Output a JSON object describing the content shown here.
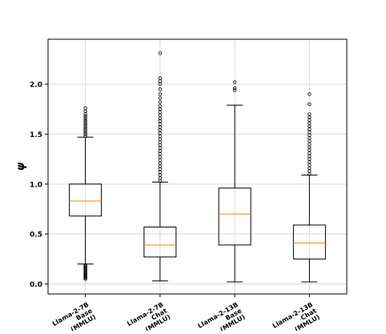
{
  "chart_data": {
    "type": "box",
    "title": "",
    "xlabel": "",
    "ylabel": "ψ",
    "ylim": [
      -0.1,
      2.45
    ],
    "yticks": [
      0.0,
      0.5,
      1.0,
      1.5,
      2.0
    ],
    "ytick_labels": [
      "0.0",
      "0.5",
      "1.0",
      "1.5",
      "2.0"
    ],
    "grid": true,
    "categories": [
      [
        "Llama-2-7B",
        "Base",
        "(MMLU)"
      ],
      [
        "Llama-2-7B",
        "Chat",
        "(MMLU)"
      ],
      [
        "Llama-2-13B",
        "Base",
        "(MMLU)"
      ],
      [
        "Llama-2-13B",
        "Chat",
        "(MMLU)"
      ]
    ],
    "boxes": [
      {
        "whisker_low": 0.2,
        "q1": 0.68,
        "median": 0.83,
        "q3": 1.0,
        "whisker_high": 1.47,
        "outliers": [
          0.05,
          0.06,
          0.07,
          0.08,
          0.09,
          0.1,
          0.11,
          0.12,
          0.13,
          0.14,
          0.15,
          0.16,
          0.17,
          0.18,
          0.19,
          1.48,
          1.5,
          1.52,
          1.54,
          1.56,
          1.58,
          1.6,
          1.62,
          1.64,
          1.66,
          1.68,
          1.7,
          1.73,
          1.76
        ]
      },
      {
        "whisker_low": 0.03,
        "q1": 0.27,
        "median": 0.39,
        "q3": 0.57,
        "whisker_high": 1.02,
        "outliers": [
          1.03,
          1.06,
          1.09,
          1.12,
          1.15,
          1.18,
          1.21,
          1.24,
          1.27,
          1.3,
          1.33,
          1.36,
          1.39,
          1.42,
          1.45,
          1.48,
          1.51,
          1.54,
          1.57,
          1.6,
          1.63,
          1.66,
          1.69,
          1.72,
          1.75,
          1.78,
          1.82,
          1.86,
          1.9,
          1.95,
          2.0,
          2.03,
          2.06,
          2.31
        ]
      },
      {
        "whisker_low": 0.02,
        "q1": 0.39,
        "median": 0.7,
        "q3": 0.96,
        "whisker_high": 1.79,
        "outliers": [
          1.94,
          1.96,
          2.02
        ]
      },
      {
        "whisker_low": 0.02,
        "q1": 0.25,
        "median": 0.41,
        "q3": 0.59,
        "whisker_high": 1.09,
        "outliers": [
          1.1,
          1.13,
          1.16,
          1.19,
          1.22,
          1.25,
          1.28,
          1.31,
          1.34,
          1.37,
          1.4,
          1.43,
          1.46,
          1.49,
          1.52,
          1.55,
          1.58,
          1.61,
          1.64,
          1.67,
          1.7,
          1.8,
          1.9
        ]
      }
    ],
    "colors": {
      "median": "#ff7f0e",
      "box": "#000000",
      "grid": "#d9d9d9"
    }
  }
}
